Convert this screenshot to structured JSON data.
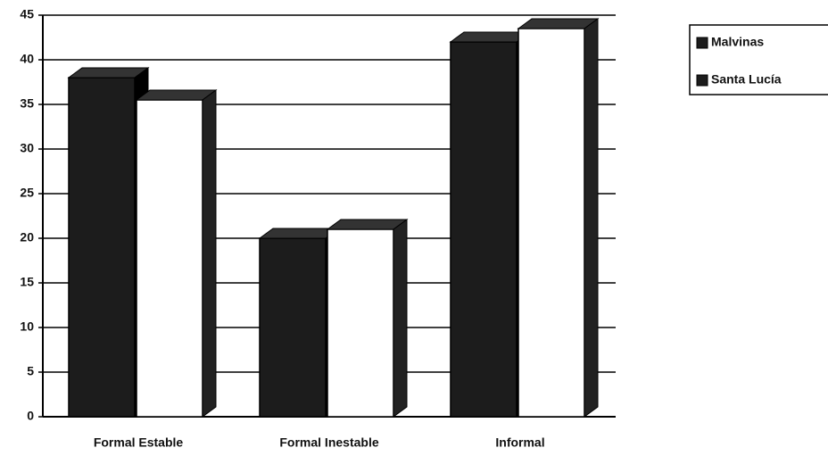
{
  "chart_data": {
    "type": "bar3d",
    "categories": [
      "Formal Estable",
      "Formal Inestable",
      "Informal"
    ],
    "series": [
      {
        "name": "Malvinas",
        "color": "#1c1c1c",
        "values": [
          38,
          20,
          42
        ]
      },
      {
        "name": "Santa Lucía",
        "color": "#ffffff",
        "values": [
          35.5,
          21,
          43.5
        ]
      }
    ],
    "ylim": [
      0,
      45
    ],
    "yticks": [
      0,
      5,
      10,
      15,
      20,
      25,
      30,
      35,
      40,
      45
    ],
    "grid": true
  }
}
